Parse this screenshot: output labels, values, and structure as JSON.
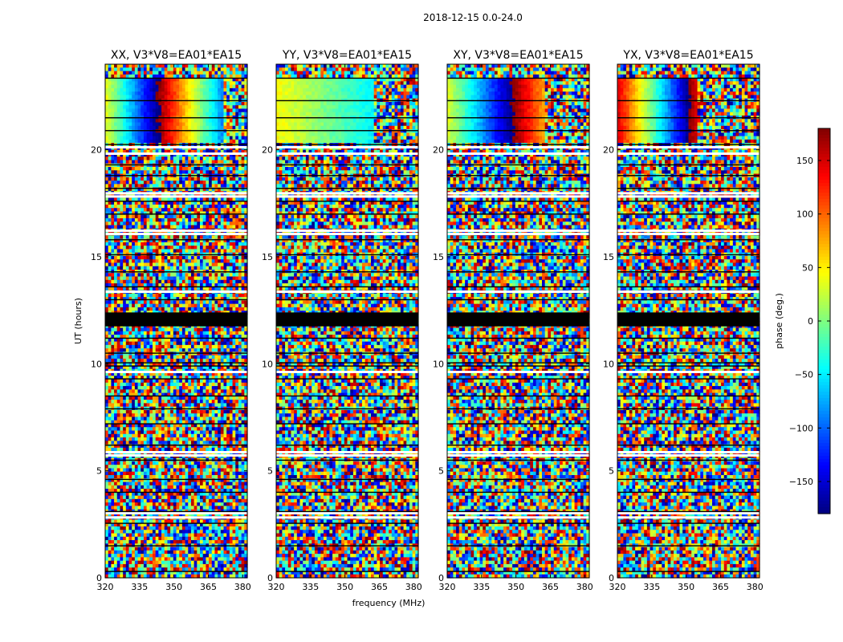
{
  "figure_title": "2018-12-15 0.0-24.0",
  "chart_data": {
    "type": "heatmap",
    "title": "2018-12-15 0.0-24.0",
    "xlabel": "frequency (MHz)",
    "ylabel": "UT (hours)",
    "xlim": [
      320,
      382
    ],
    "ylim": [
      0,
      24
    ],
    "xticks": [
      320,
      335,
      350,
      365,
      380
    ],
    "yticks": [
      0,
      5,
      10,
      15,
      20
    ],
    "panels": [
      {
        "name": "xx",
        "title": "XX, V3*V8=EA01*EA15",
        "coherent_band": {
          "t_start": 20.3,
          "t_end": 23.4,
          "phase_start": 40,
          "phase_slope_deg_per_mhz": 9.5,
          "coherent_until_mhz": 372
        }
      },
      {
        "name": "yy",
        "title": "YY, V3*V8=EA01*EA15",
        "coherent_band": {
          "t_start": 20.3,
          "t_end": 23.4,
          "phase_start": 45,
          "phase_slope_deg_per_mhz": 2.2,
          "coherent_until_mhz": 362
        }
      },
      {
        "name": "xy",
        "title": "XY, V3*V8=EA01*EA15",
        "coherent_band": {
          "t_start": 20.3,
          "t_end": 23.4,
          "phase_start": 35,
          "phase_slope_deg_per_mhz": 7.5,
          "coherent_until_mhz": 362
        }
      },
      {
        "name": "yx",
        "title": "YX, V3*V8=EA01*EA15",
        "coherent_band": {
          "t_start": 20.3,
          "t_end": 23.4,
          "phase_start": 150,
          "phase_slope_deg_per_mhz": 10.5,
          "coherent_until_mhz": 355
        }
      }
    ],
    "flagged_block_hours": [
      11.75,
      12.4
    ],
    "blank_rows_hours": [
      2.8,
      3.0,
      5.7,
      5.85,
      9.6,
      13.35,
      16.05,
      16.2,
      17.8,
      17.95,
      19.8,
      20.1
    ],
    "black_lines_hours": [
      0.3,
      1.5,
      2.55,
      3.1,
      4.0,
      4.6,
      5.5,
      6.2,
      7.2,
      7.9,
      8.5,
      9.3,
      9.9,
      10.05,
      10.5,
      11.2,
      13.0,
      13.6,
      14.3,
      15.1,
      15.8,
      17.0,
      17.6,
      18.2,
      18.8,
      19.3,
      20.25,
      20.9,
      21.5,
      22.3,
      23.35
    ],
    "colorbar": {
      "label": "phase (deg.)",
      "range": [
        -180,
        180
      ],
      "ticks": [
        150,
        100,
        50,
        0,
        -50,
        -100,
        -150
      ],
      "tick_labels": [
        "150",
        "100",
        "50",
        "0",
        "−50",
        "−100",
        "−150"
      ],
      "colormap": "jet"
    }
  }
}
